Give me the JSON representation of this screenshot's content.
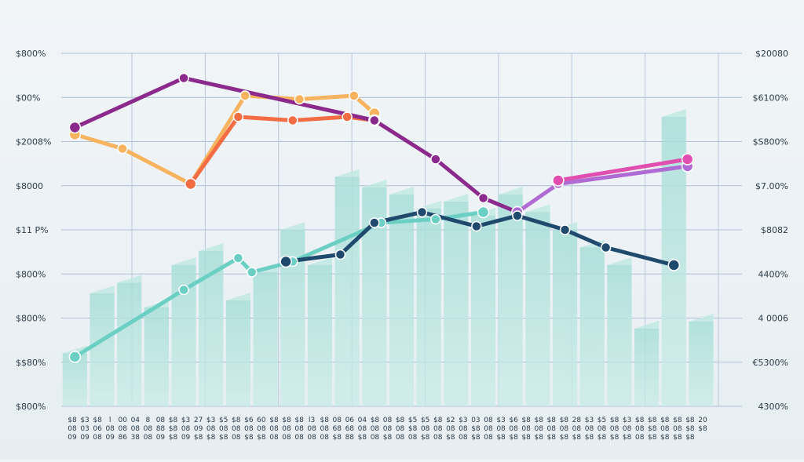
{
  "chart_data": {
    "type": "line",
    "title": "",
    "xlabel": "",
    "ylabel": "",
    "grid": true,
    "legend": "none",
    "left_axis_labels": [
      "$800%",
      "$00%",
      "$2008%",
      "$8000",
      "$11 P%",
      "$800%",
      "$800%",
      "$$80%",
      "$800%"
    ],
    "right_axis_labels": [
      "$20080",
      "$6100%",
      "$S800%",
      "$7.00%",
      "$8082",
      "4400%",
      "4 0006",
      "€5300%",
      "4300%"
    ],
    "x_tick_labels": [
      [
        "$8",
        "08",
        "09"
      ],
      [
        "$3",
        "03",
        "09"
      ],
      [
        "$8",
        "06",
        "08"
      ],
      [
        "l",
        "08",
        "09"
      ],
      [
        "00",
        "08",
        "86"
      ],
      [
        "04",
        "08",
        "38"
      ],
      [
        "8",
        "08",
        "08"
      ],
      [
        "08",
        "88",
        "09"
      ],
      [
        "$8",
        "$8",
        "$8"
      ],
      [
        "$3",
        "08",
        "09"
      ],
      [
        "27",
        "09",
        "$8"
      ],
      [
        "$3",
        "08",
        "$8"
      ],
      [
        "$5",
        "08",
        "$8"
      ],
      [
        "$8",
        "08",
        "08"
      ],
      [
        "$6",
        "08",
        "$8"
      ],
      [
        "60",
        "08",
        "$8"
      ],
      [
        "$8",
        "08",
        "08"
      ],
      [
        "$8",
        "08",
        "08"
      ],
      [
        "$8",
        "08",
        "08"
      ],
      [
        "l3",
        "08",
        "08"
      ],
      [
        "$8",
        "08",
        "08"
      ],
      [
        "08",
        "68",
        "$8"
      ],
      [
        "06",
        "68",
        "88"
      ],
      [
        "04",
        "08",
        "$8"
      ],
      [
        "$8",
        "08",
        "08"
      ],
      [
        "08",
        "08",
        "$8"
      ],
      [
        "$8",
        "08",
        "08"
      ],
      [
        "$5",
        "$8",
        "08"
      ],
      [
        "$5",
        "08",
        "$8"
      ],
      [
        "$8",
        "08",
        "08"
      ],
      [
        "$2",
        "08",
        "$8"
      ],
      [
        "$3",
        "08",
        "08"
      ],
      [
        "03",
        "$8",
        "$8"
      ],
      [
        "08",
        "08",
        "08"
      ],
      [
        "$3",
        "08",
        "$8"
      ],
      [
        "$6",
        "08",
        "$8"
      ],
      [
        "$8",
        "08",
        "$8"
      ],
      [
        "$8",
        "08",
        "$8"
      ],
      [
        "$8",
        "08",
        "$8"
      ],
      [
        "$8",
        "08",
        "$8"
      ],
      [
        "28",
        "08",
        "$8"
      ],
      [
        "$3",
        "08",
        "$8"
      ],
      [
        "$5",
        "08",
        "$8"
      ],
      [
        "$8",
        "08",
        "$8"
      ],
      [
        "$3",
        "08",
        "$8"
      ],
      [
        "$8",
        "08",
        "08"
      ],
      [
        "$8",
        "$8",
        "$8"
      ],
      [
        "$8",
        "08",
        "$8"
      ],
      [
        "$8",
        "08",
        "$8"
      ],
      [
        "$8",
        "$8",
        "$8"
      ],
      [
        "20",
        "$8",
        ""
      ]
    ],
    "y_range": [
      0,
      100
    ],
    "x_range": [
      0,
      100
    ],
    "bars": [
      {
        "x": 2,
        "y": 15
      },
      {
        "x": 6,
        "y": 32
      },
      {
        "x": 10,
        "y": 35
      },
      {
        "x": 14,
        "y": 28
      },
      {
        "x": 18,
        "y": 40
      },
      {
        "x": 22,
        "y": 44
      },
      {
        "x": 26,
        "y": 30
      },
      {
        "x": 30,
        "y": 38
      },
      {
        "x": 34,
        "y": 50
      },
      {
        "x": 38,
        "y": 40
      },
      {
        "x": 42,
        "y": 65
      },
      {
        "x": 46,
        "y": 62
      },
      {
        "x": 50,
        "y": 60
      },
      {
        "x": 54,
        "y": 56
      },
      {
        "x": 58,
        "y": 58
      },
      {
        "x": 62,
        "y": 54
      },
      {
        "x": 66,
        "y": 60
      },
      {
        "x": 70,
        "y": 55
      },
      {
        "x": 74,
        "y": 50
      },
      {
        "x": 78,
        "y": 45
      },
      {
        "x": 82,
        "y": 40
      },
      {
        "x": 86,
        "y": 22
      },
      {
        "x": 90,
        "y": 82
      },
      {
        "x": 94,
        "y": 24
      }
    ],
    "series": [
      {
        "color": "#f7b35d",
        "points": [
          [
            2,
            77
          ],
          [
            9,
            73
          ],
          [
            19,
            63
          ],
          [
            27,
            88
          ],
          [
            35,
            87
          ],
          [
            43,
            88
          ],
          [
            46,
            83
          ]
        ]
      },
      {
        "color": "#f26d44",
        "points": [
          [
            19,
            63
          ],
          [
            26,
            82
          ],
          [
            34,
            81
          ],
          [
            42,
            82
          ],
          [
            46,
            81
          ]
        ]
      },
      {
        "color": "#8b2a8c",
        "points": [
          [
            2,
            79
          ],
          [
            18,
            93
          ],
          [
            46,
            81
          ],
          [
            55,
            70
          ],
          [
            62,
            59
          ],
          [
            67,
            55
          ]
        ]
      },
      {
        "color": "#b06ad4",
        "points": [
          [
            67,
            55
          ],
          [
            73,
            63
          ],
          [
            92,
            68
          ]
        ]
      },
      {
        "color": "#e04fb0",
        "points": [
          [
            73,
            64
          ],
          [
            92,
            70
          ]
        ]
      },
      {
        "color": "#6bcfc4",
        "points": [
          [
            2,
            14
          ],
          [
            18,
            33
          ],
          [
            26,
            42
          ],
          [
            28,
            38
          ],
          [
            34,
            41
          ],
          [
            47,
            52
          ],
          [
            55,
            53
          ],
          [
            62,
            55
          ]
        ]
      },
      {
        "color": "#1f4a6e",
        "points": [
          [
            33,
            41
          ],
          [
            41,
            43
          ],
          [
            46,
            52
          ],
          [
            53,
            55
          ],
          [
            61,
            51
          ],
          [
            67,
            54
          ],
          [
            74,
            50
          ],
          [
            80,
            45
          ],
          [
            90,
            40
          ]
        ]
      }
    ]
  }
}
